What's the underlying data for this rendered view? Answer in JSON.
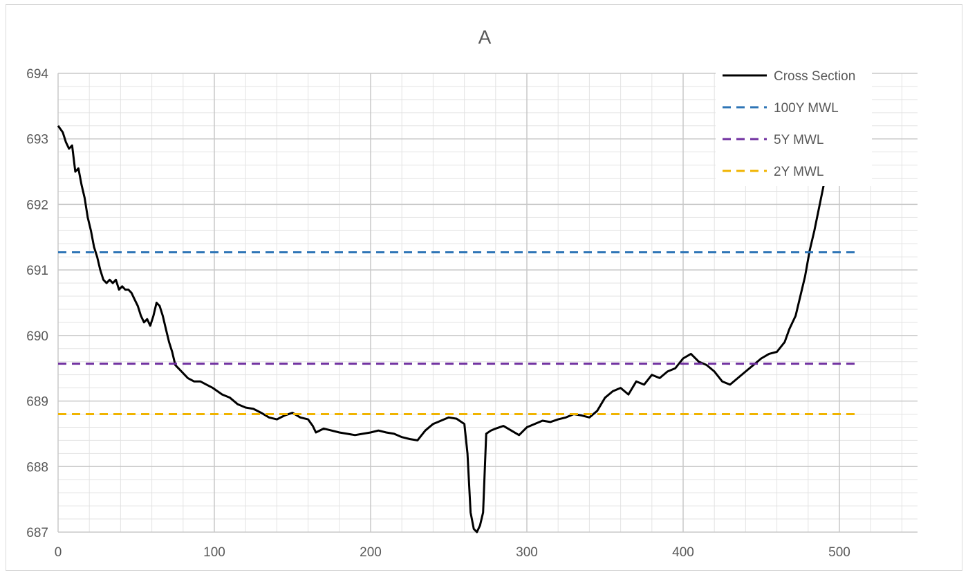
{
  "chart_data": {
    "type": "line",
    "title": "A",
    "xlabel": "",
    "ylabel": "",
    "xlim": [
      0,
      550
    ],
    "ylim": [
      687,
      694
    ],
    "x_ticks": [
      0,
      100,
      200,
      300,
      400,
      500
    ],
    "x_tick_labels": [
      "0",
      "100",
      "200",
      "300",
      "400",
      "500"
    ],
    "y_ticks": [
      687,
      688,
      689,
      690,
      691,
      692,
      693,
      694
    ],
    "y_tick_labels": [
      "687",
      "688",
      "689",
      "690",
      "691",
      "692",
      "693",
      "694"
    ],
    "grid": true,
    "legend_position": "top-right",
    "series": [
      {
        "name": "Cross Section",
        "style": "solid",
        "color": "#000000",
        "points": [
          [
            0,
            693.2
          ],
          [
            3,
            693.1
          ],
          [
            5,
            692.95
          ],
          [
            7,
            692.85
          ],
          [
            9,
            692.9
          ],
          [
            11,
            692.5
          ],
          [
            13,
            692.55
          ],
          [
            15,
            692.3
          ],
          [
            17,
            692.1
          ],
          [
            19,
            691.8
          ],
          [
            21,
            691.6
          ],
          [
            23,
            691.35
          ],
          [
            25,
            691.2
          ],
          [
            27,
            691.0
          ],
          [
            29,
            690.85
          ],
          [
            31,
            690.8
          ],
          [
            33,
            690.85
          ],
          [
            35,
            690.8
          ],
          [
            37,
            690.85
          ],
          [
            39,
            690.7
          ],
          [
            41,
            690.75
          ],
          [
            43,
            690.7
          ],
          [
            45,
            690.7
          ],
          [
            47,
            690.65
          ],
          [
            49,
            690.55
          ],
          [
            51,
            690.45
          ],
          [
            53,
            690.3
          ],
          [
            55,
            690.2
          ],
          [
            57,
            690.25
          ],
          [
            59,
            690.15
          ],
          [
            61,
            690.3
          ],
          [
            63,
            690.5
          ],
          [
            65,
            690.45
          ],
          [
            67,
            690.3
          ],
          [
            69,
            690.1
          ],
          [
            71,
            689.9
          ],
          [
            73,
            689.75
          ],
          [
            75,
            689.55
          ],
          [
            77,
            689.5
          ],
          [
            79,
            689.45
          ],
          [
            81,
            689.4
          ],
          [
            83,
            689.35
          ],
          [
            87,
            689.3
          ],
          [
            91,
            689.3
          ],
          [
            95,
            689.25
          ],
          [
            99,
            689.2
          ],
          [
            102,
            689.15
          ],
          [
            105,
            689.1
          ],
          [
            110,
            689.05
          ],
          [
            115,
            688.95
          ],
          [
            120,
            688.9
          ],
          [
            125,
            688.88
          ],
          [
            130,
            688.82
          ],
          [
            135,
            688.75
          ],
          [
            140,
            688.72
          ],
          [
            145,
            688.78
          ],
          [
            150,
            688.82
          ],
          [
            155,
            688.75
          ],
          [
            160,
            688.72
          ],
          [
            163,
            688.62
          ],
          [
            165,
            688.52
          ],
          [
            170,
            688.58
          ],
          [
            175,
            688.55
          ],
          [
            180,
            688.52
          ],
          [
            185,
            688.5
          ],
          [
            190,
            688.48
          ],
          [
            195,
            688.5
          ],
          [
            200,
            688.52
          ],
          [
            205,
            688.55
          ],
          [
            210,
            688.52
          ],
          [
            215,
            688.5
          ],
          [
            220,
            688.45
          ],
          [
            225,
            688.42
          ],
          [
            230,
            688.4
          ],
          [
            235,
            688.55
          ],
          [
            240,
            688.65
          ],
          [
            245,
            688.7
          ],
          [
            250,
            688.75
          ],
          [
            255,
            688.73
          ],
          [
            260,
            688.65
          ],
          [
            262,
            688.2
          ],
          [
            264,
            687.3
          ],
          [
            266,
            687.05
          ],
          [
            268,
            687.0
          ],
          [
            270,
            687.1
          ],
          [
            272,
            687.3
          ],
          [
            274,
            688.5
          ],
          [
            277,
            688.55
          ],
          [
            280,
            688.58
          ],
          [
            285,
            688.62
          ],
          [
            290,
            688.55
          ],
          [
            295,
            688.48
          ],
          [
            300,
            688.6
          ],
          [
            305,
            688.65
          ],
          [
            310,
            688.7
          ],
          [
            315,
            688.68
          ],
          [
            320,
            688.72
          ],
          [
            325,
            688.75
          ],
          [
            330,
            688.8
          ],
          [
            335,
            688.78
          ],
          [
            340,
            688.75
          ],
          [
            345,
            688.85
          ],
          [
            350,
            689.05
          ],
          [
            355,
            689.15
          ],
          [
            360,
            689.2
          ],
          [
            365,
            689.1
          ],
          [
            370,
            689.3
          ],
          [
            375,
            689.25
          ],
          [
            380,
            689.4
          ],
          [
            385,
            689.35
          ],
          [
            390,
            689.45
          ],
          [
            395,
            689.5
          ],
          [
            400,
            689.65
          ],
          [
            405,
            689.72
          ],
          [
            410,
            689.6
          ],
          [
            415,
            689.55
          ],
          [
            420,
            689.45
          ],
          [
            425,
            689.3
          ],
          [
            430,
            689.25
          ],
          [
            435,
            689.35
          ],
          [
            440,
            689.45
          ],
          [
            445,
            689.55
          ],
          [
            450,
            689.65
          ],
          [
            455,
            689.72
          ],
          [
            460,
            689.75
          ],
          [
            465,
            689.9
          ],
          [
            468,
            690.1
          ],
          [
            472,
            690.3
          ],
          [
            475,
            690.6
          ],
          [
            478,
            690.9
          ],
          [
            481,
            691.3
          ],
          [
            484,
            691.6
          ],
          [
            487,
            691.95
          ],
          [
            490,
            692.3
          ],
          [
            493,
            692.45
          ],
          [
            496,
            692.5
          ],
          [
            499,
            692.55
          ],
          [
            502,
            692.7
          ],
          [
            505,
            692.85
          ],
          [
            507,
            693.0
          ],
          [
            509,
            692.95
          ],
          [
            511,
            692.98
          ],
          [
            513,
            692.95
          ],
          [
            515,
            693.0
          ]
        ]
      },
      {
        "name": "100Y MWL",
        "style": "dashed",
        "color": "#2e75b6",
        "y": 691.27,
        "x_range": [
          0,
          512
        ]
      },
      {
        "name": "5Y MWL",
        "style": "dashed",
        "color": "#7030a0",
        "y": 689.57,
        "x_range": [
          0,
          512
        ]
      },
      {
        "name": "2Y MWL",
        "style": "dashed",
        "color": "#f0b400",
        "y": 688.8,
        "x_range": [
          0,
          512
        ]
      }
    ]
  }
}
